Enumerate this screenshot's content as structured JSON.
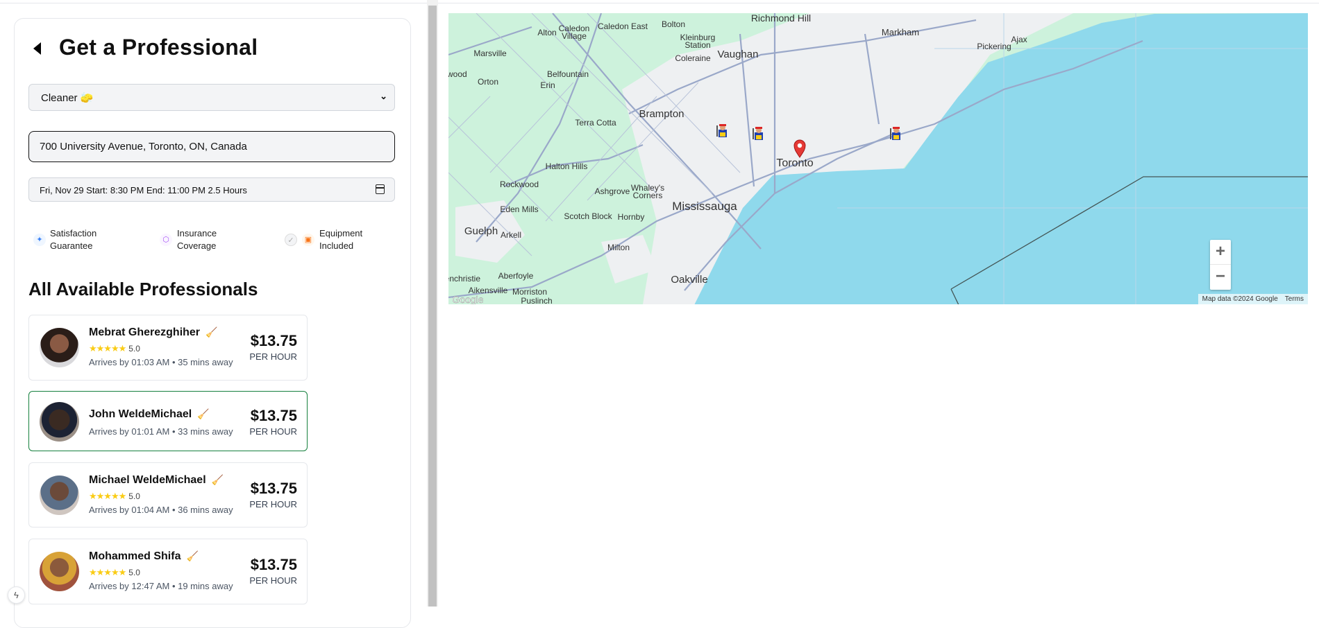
{
  "header": {
    "title": "Get a Professional"
  },
  "form": {
    "service_select": "Cleaner 🧽",
    "address": "700 University Avenue, Toronto, ON, Canada",
    "datetime": "Fri, Nov 29 Start: 8:30 PM End: 11:00 PM 2.5 Hours"
  },
  "features": [
    {
      "line1": "Satisfaction",
      "line2": "Guarantee",
      "icon": "sparkle-icon",
      "color": "#3b82f6"
    },
    {
      "line1": "Insurance",
      "line2": "Coverage",
      "icon": "shield-icon",
      "color": "#a855f7"
    },
    {
      "line1": "Equipment",
      "line2": "Included",
      "icon": "package-icon",
      "color": "#f97316"
    }
  ],
  "list_title": "All Available Professionals",
  "professionals": [
    {
      "name": "Mebrat Gherezghiher",
      "stars": "★★★★★",
      "rating": "5.0",
      "arrival": "Arrives by 01:03 AM • 35 mins away",
      "price": "$13.75",
      "unit": "PER HOUR",
      "selected": false
    },
    {
      "name": "John WeldeMichael",
      "arrival": "Arrives by 01:01 AM • 33 mins away",
      "price": "$13.75",
      "unit": "PER HOUR",
      "selected": true
    },
    {
      "name": "Michael WeldeMichael",
      "stars": "★★★★★",
      "rating": "5.0",
      "arrival": "Arrives by 01:04 AM • 36 mins away",
      "price": "$13.75",
      "unit": "PER HOUR",
      "selected": false
    },
    {
      "name": "Mohammed Shifa",
      "stars": "★★★★★",
      "rating": "5.0",
      "arrival": "Arrives by 12:47 AM • 19 mins away",
      "price": "$13.75",
      "unit": "PER HOUR",
      "selected": false
    }
  ],
  "map": {
    "labels": {
      "richmond_hill": "Richmond Hill",
      "markham": "Markham",
      "bolton": "Bolton",
      "caledon_east": "Caledon East",
      "alton": "Alton",
      "caledon": "Caledon",
      "village": "Village",
      "kleinburg": "Kleinburg",
      "station": "Station",
      "vaughan": "Vaughan",
      "coleraine": "Coleraine",
      "marsville": "Marsville",
      "elwood": "lwood",
      "orton": "Orton",
      "belfountain": "Belfountain",
      "erin": "Erin",
      "brampton": "Brampton",
      "terra_cotta": "Terra Cotta",
      "halton_hills": "Halton Hills",
      "rockwood": "Rockwood",
      "ashgrove": "Ashgrove",
      "whaleys": "Whaley's",
      "corners": "Corners",
      "mississauga": "Mississauga",
      "eden_mills": "Eden Mills",
      "scotch_block": "Scotch Block",
      "hornby": "Hornby",
      "guelph": "Guelph",
      "arkell": "Arkell",
      "milton": "Milton",
      "oakville": "Oakville",
      "aberfoyle": "Aberfoyle",
      "glenchristie": "lenchristie",
      "aikensville": "Aikensville",
      "morriston": "Morriston",
      "puslinch": "Puslinch",
      "toronto": "Toronto",
      "pickering": "Pickering",
      "ajax": "Ajax",
      "google": "Google"
    },
    "zoom_in": "+",
    "zoom_out": "−",
    "attribution": "Map data ©2024 Google",
    "terms": "Terms",
    "colors": {
      "land": "#cdf2dc",
      "urban": "#eef0f2",
      "water": "#8fd9ec",
      "road": "#9aa8c9",
      "marker": "#e53935"
    }
  }
}
